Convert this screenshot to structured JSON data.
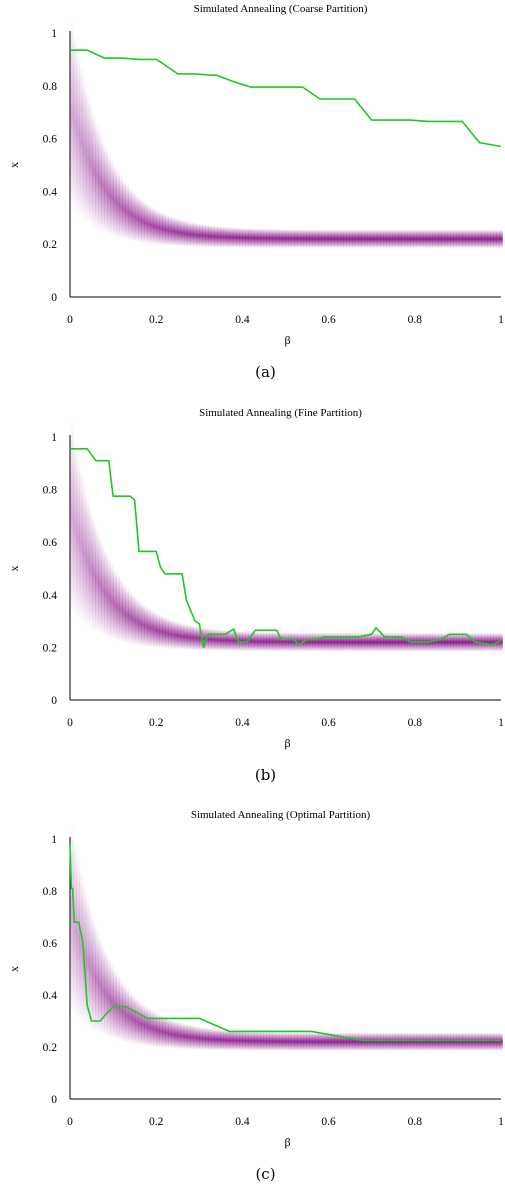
{
  "colors": {
    "green_line": "#1ec81e",
    "band_purple": "#8e1f8e",
    "axis": "#000000"
  },
  "chart_data": [
    {
      "type": "line",
      "title": "Simulated Annealing (Coarse Partition)",
      "caption": "(a)",
      "xlabel": "β",
      "ylabel": "x",
      "xlim": [
        0,
        1
      ],
      "ylim": [
        0,
        1
      ],
      "xticks": [
        "0",
        "0.2",
        "0.4",
        "0.6",
        "0.8",
        "1"
      ],
      "yticks": [
        "0",
        "0.2",
        "0.4",
        "0.6",
        "0.8",
        "1"
      ],
      "grid": false,
      "series": [
        {
          "color": "#1ec81e",
          "x": [
            0.0,
            0.04,
            0.08,
            0.12,
            0.16,
            0.2,
            0.21,
            0.25,
            0.29,
            0.33,
            0.34,
            0.38,
            0.42,
            0.46,
            0.5,
            0.54,
            0.58,
            0.62,
            0.66,
            0.7,
            0.71,
            0.75,
            0.79,
            0.83,
            0.87,
            0.91,
            0.95,
            1.0
          ],
          "y": [
            0.935,
            0.935,
            0.905,
            0.905,
            0.9,
            0.9,
            0.89,
            0.845,
            0.845,
            0.84,
            0.84,
            0.815,
            0.795,
            0.795,
            0.795,
            0.795,
            0.75,
            0.75,
            0.75,
            0.67,
            0.67,
            0.67,
            0.67,
            0.665,
            0.665,
            0.665,
            0.585,
            0.57
          ]
        }
      ],
      "band": {
        "center_asymptote": 0.22,
        "center_start": 0.72,
        "decay": 12,
        "half_width": 0.035,
        "color": "#8e1f8e"
      }
    },
    {
      "type": "line",
      "title": "Simulated Annealing (Fine Partition)",
      "caption": "(b)",
      "xlabel": "β",
      "ylabel": "x",
      "xlim": [
        0,
        1
      ],
      "ylim": [
        0,
        1
      ],
      "xticks": [
        "0",
        "0.2",
        "0.4",
        "0.6",
        "0.8",
        "1"
      ],
      "yticks": [
        "0",
        "0.2",
        "0.4",
        "0.6",
        "0.8",
        "1"
      ],
      "grid": false,
      "series": [
        {
          "color": "#1ec81e",
          "x": [
            0.0,
            0.04,
            0.06,
            0.09,
            0.1,
            0.14,
            0.15,
            0.16,
            0.2,
            0.21,
            0.22,
            0.26,
            0.27,
            0.29,
            0.3,
            0.31,
            0.32,
            0.36,
            0.37,
            0.38,
            0.39,
            0.41,
            0.43,
            0.45,
            0.48,
            0.49,
            0.52,
            0.53,
            0.55,
            0.57,
            0.59,
            0.63,
            0.67,
            0.7,
            0.71,
            0.73,
            0.77,
            0.79,
            0.83,
            0.86,
            0.88,
            0.92,
            0.94,
            0.98,
            1.0
          ],
          "y": [
            0.955,
            0.955,
            0.91,
            0.91,
            0.775,
            0.775,
            0.76,
            0.565,
            0.565,
            0.505,
            0.48,
            0.48,
            0.38,
            0.3,
            0.29,
            0.2,
            0.25,
            0.25,
            0.26,
            0.27,
            0.22,
            0.22,
            0.265,
            0.265,
            0.265,
            0.23,
            0.23,
            0.21,
            0.23,
            0.23,
            0.24,
            0.24,
            0.24,
            0.25,
            0.275,
            0.24,
            0.24,
            0.22,
            0.22,
            0.23,
            0.25,
            0.25,
            0.22,
            0.21,
            0.225
          ]
        }
      ],
      "band": {
        "center_asymptote": 0.22,
        "center_start": 0.72,
        "decay": 12,
        "half_width": 0.035,
        "color": "#8e1f8e"
      }
    },
    {
      "type": "line",
      "title": "Simulated Annealing (Optimal Partition)",
      "caption": "(c)",
      "xlabel": "β",
      "ylabel": "x",
      "xlim": [
        0,
        1
      ],
      "ylim": [
        0,
        1
      ],
      "xticks": [
        "0",
        "0.2",
        "0.4",
        "0.6",
        "0.8",
        "1"
      ],
      "yticks": [
        "0",
        "0.2",
        "0.4",
        "0.6",
        "0.8",
        "1"
      ],
      "grid": false,
      "series": [
        {
          "color": "#1ec81e",
          "x": [
            0.0,
            0.003,
            0.006,
            0.01,
            0.02,
            0.03,
            0.04,
            0.05,
            0.07,
            0.08,
            0.1,
            0.13,
            0.18,
            0.3,
            0.37,
            0.56,
            0.68,
            1.0
          ],
          "y": [
            0.98,
            0.81,
            0.81,
            0.68,
            0.68,
            0.6,
            0.36,
            0.3,
            0.3,
            0.32,
            0.355,
            0.355,
            0.31,
            0.31,
            0.26,
            0.26,
            0.225,
            0.225
          ]
        }
      ],
      "band": {
        "center_asymptote": 0.22,
        "center_start": 0.72,
        "decay": 12,
        "half_width": 0.035,
        "color": "#8e1f8e"
      }
    }
  ]
}
